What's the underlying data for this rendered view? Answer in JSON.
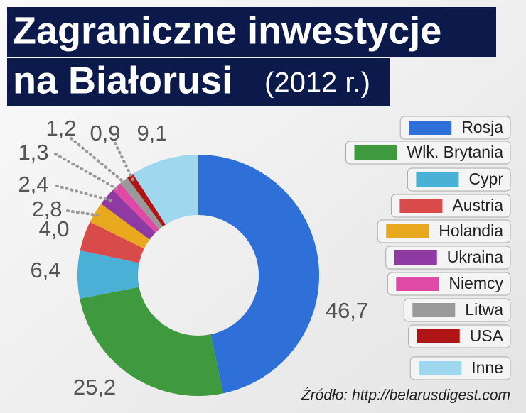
{
  "chart_data": {
    "type": "donut",
    "title": [
      "Zagraniczne inwestycje",
      "na Białorusi"
    ],
    "subtitle": "(2012 r.)",
    "source": "Źródło: http://belarusdigest.com",
    "categories": [
      "Rosja",
      "Wlk. Brytania",
      "Cypr",
      "Austria",
      "Holandia",
      "Ukraina",
      "Niemcy",
      "Litwa",
      "USA",
      "Inne"
    ],
    "values": [
      46.7,
      25.2,
      6.4,
      4.0,
      2.8,
      2.4,
      1.3,
      1.2,
      0.9,
      9.1
    ],
    "value_labels": [
      "46,7",
      "25,2",
      "6,4",
      "4,0",
      "2,8",
      "2,4",
      "1,3",
      "1,2",
      "0,9",
      "9,1"
    ],
    "colors": [
      "#2f6fd8",
      "#3f9a3f",
      "#4ab0d6",
      "#d94b4b",
      "#e9a91f",
      "#8e3aa2",
      "#df4aa7",
      "#9a9a9a",
      "#b01515",
      "#9fd8ee"
    ],
    "legend": "right"
  }
}
